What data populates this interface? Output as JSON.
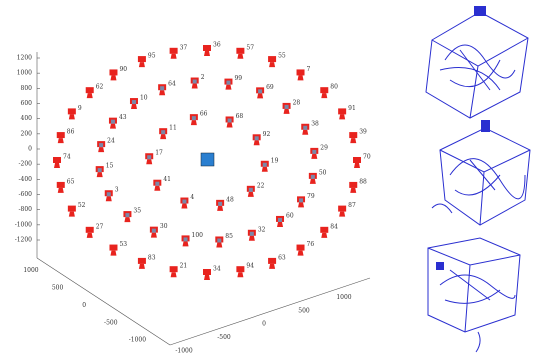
{
  "axes": {
    "z_ticks": [
      "1200",
      "1000",
      "800",
      "600",
      "400",
      "200",
      "0",
      "-200",
      "-400",
      "-600",
      "-800",
      "-1000",
      "-1200"
    ],
    "x_ticks": [
      "1000",
      "500",
      "0",
      "-500",
      "-1000"
    ],
    "y_ticks": [
      "-1000",
      "-500",
      "0",
      "500",
      "1000"
    ]
  },
  "cameras": [
    "36",
    "57",
    "55",
    "7",
    "80",
    "91",
    "39",
    "70",
    "88",
    "87",
    "84",
    "76",
    "63",
    "94",
    "34",
    "21",
    "83",
    "53",
    "27",
    "52",
    "65",
    "74",
    "86",
    "9",
    "62",
    "90",
    "95",
    "37",
    "99",
    "69",
    "28",
    "38",
    "29",
    "50",
    "79",
    "60",
    "32",
    "85",
    "100",
    "30",
    "35",
    "3",
    "15",
    "24",
    "43",
    "10",
    "64",
    "2",
    "68",
    "92",
    "19",
    "22",
    "48",
    "4",
    "41",
    "17",
    "11",
    "66"
  ]
}
